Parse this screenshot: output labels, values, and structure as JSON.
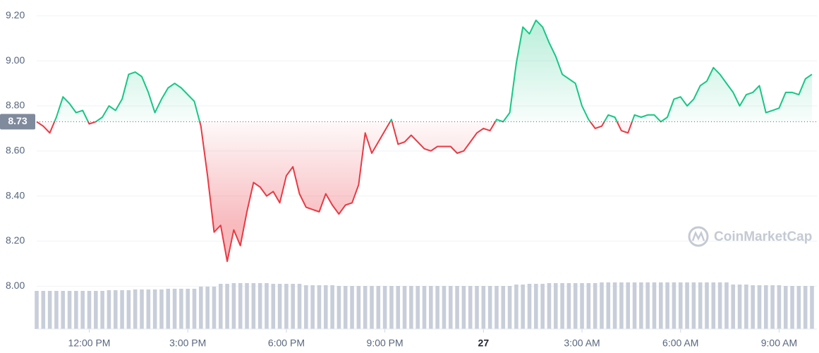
{
  "chart_data": {
    "type": "line",
    "x": [
      10.4,
      10.6,
      10.8,
      11.0,
      11.2,
      11.4,
      11.6,
      11.8,
      12.0,
      12.2,
      12.4,
      12.6,
      12.8,
      13.0,
      13.2,
      13.4,
      13.6,
      13.8,
      14.0,
      14.2,
      14.4,
      14.6,
      14.8,
      15.0,
      15.2,
      15.4,
      15.6,
      15.8,
      16.0,
      16.2,
      16.4,
      16.6,
      16.8,
      17.0,
      17.2,
      17.4,
      17.6,
      17.8,
      18.0,
      18.2,
      18.4,
      18.6,
      18.8,
      19.0,
      19.2,
      19.4,
      19.6,
      19.8,
      20.0,
      20.2,
      20.4,
      20.6,
      20.8,
      21.0,
      21.2,
      21.4,
      21.6,
      21.8,
      22.0,
      22.2,
      22.4,
      22.6,
      22.8,
      23.0,
      23.2,
      23.4,
      23.6,
      23.8,
      24.0,
      24.2,
      24.4,
      24.6,
      24.8,
      25.0,
      25.2,
      25.4,
      25.6,
      25.8,
      26.0,
      26.2,
      26.4,
      26.6,
      26.8,
      27.0,
      27.2,
      27.4,
      27.6,
      27.8,
      28.0,
      28.2,
      28.4,
      28.6,
      28.8,
      29.0,
      29.2,
      29.4,
      29.6,
      29.8,
      30.0,
      30.2,
      30.4,
      30.6,
      30.8,
      31.0,
      31.2,
      31.4,
      31.6,
      31.8,
      32.0,
      32.2,
      32.4,
      32.6,
      32.8,
      33.0,
      33.2,
      33.4,
      33.6,
      33.8,
      34.0
    ],
    "values": [
      8.73,
      8.71,
      8.68,
      8.75,
      8.84,
      8.81,
      8.77,
      8.78,
      8.72,
      8.73,
      8.75,
      8.8,
      8.78,
      8.83,
      8.94,
      8.95,
      8.93,
      8.86,
      8.77,
      8.83,
      8.88,
      8.9,
      8.88,
      8.85,
      8.82,
      8.71,
      8.49,
      8.24,
      8.27,
      8.11,
      8.25,
      8.18,
      8.33,
      8.46,
      8.44,
      8.4,
      8.42,
      8.37,
      8.49,
      8.53,
      8.41,
      8.35,
      8.34,
      8.33,
      8.41,
      8.36,
      8.32,
      8.36,
      8.37,
      8.45,
      8.68,
      8.59,
      8.64,
      8.69,
      8.74,
      8.63,
      8.64,
      8.67,
      8.64,
      8.61,
      8.6,
      8.62,
      8.62,
      8.62,
      8.59,
      8.6,
      8.64,
      8.68,
      8.7,
      8.69,
      8.74,
      8.73,
      8.77,
      8.99,
      9.15,
      9.12,
      9.18,
      9.15,
      9.08,
      9.02,
      8.94,
      8.92,
      8.9,
      8.8,
      8.74,
      8.7,
      8.71,
      8.76,
      8.75,
      8.69,
      8.68,
      8.76,
      8.75,
      8.76,
      8.76,
      8.73,
      8.75,
      8.83,
      8.84,
      8.8,
      8.83,
      8.89,
      8.91,
      8.97,
      8.94,
      8.9,
      8.86,
      8.8,
      8.85,
      8.86,
      8.89,
      8.77,
      8.78,
      8.79,
      8.86,
      8.86,
      8.85,
      8.92,
      8.94
    ],
    "volume": [
      54,
      54,
      54,
      54,
      54,
      54,
      54,
      54,
      54,
      54,
      54,
      55,
      55,
      55,
      55,
      56,
      56,
      56,
      56,
      56,
      57,
      57,
      57,
      57,
      57,
      60,
      60,
      60,
      64,
      64,
      65,
      65,
      65,
      65,
      65,
      65,
      64,
      64,
      64,
      64,
      64,
      62,
      62,
      62,
      62,
      62,
      61,
      61,
      61,
      61,
      61,
      61,
      61,
      61,
      61,
      61,
      61,
      61,
      61,
      61,
      61,
      61,
      61,
      61,
      61,
      61,
      61,
      61,
      61,
      61,
      61,
      61,
      61,
      63,
      63,
      64,
      64,
      64,
      65,
      65,
      65,
      65,
      65,
      65,
      65,
      65,
      66,
      66,
      66,
      66,
      66,
      66,
      66,
      66,
      66,
      66,
      66,
      66,
      66,
      66,
      66,
      66,
      66,
      66,
      66,
      66,
      63,
      63,
      63,
      62,
      62,
      62,
      62,
      62,
      61,
      61,
      61,
      61,
      61
    ],
    "volume_ylim": [
      0,
      70
    ],
    "baseline": 8.73,
    "up_color": "#16c784",
    "down_color": "#ea3943",
    "volume_color": "#c8ced9",
    "xlim": [
      10.4,
      34.15
    ],
    "ylim": [
      7.81,
      9.27
    ],
    "xticks": [
      {
        "value": 12,
        "label": "12:00 PM"
      },
      {
        "value": 15,
        "label": "3:00 PM"
      },
      {
        "value": 18,
        "label": "6:00 PM"
      },
      {
        "value": 21,
        "label": "9:00 PM"
      },
      {
        "value": 24,
        "label": "27"
      },
      {
        "value": 27,
        "label": "3:00 AM"
      },
      {
        "value": 30,
        "label": "6:00 AM"
      },
      {
        "value": 33,
        "label": "9:00 AM"
      }
    ],
    "yticks": [
      {
        "value": 8.0,
        "label": "8.00"
      },
      {
        "value": 8.2,
        "label": "8.20"
      },
      {
        "value": 8.4,
        "label": "8.40"
      },
      {
        "value": 8.6,
        "label": "8.60"
      },
      {
        "value": 8.8,
        "label": "8.80"
      },
      {
        "value": 9.0,
        "label": "9.00"
      },
      {
        "value": 9.2,
        "label": "9.20"
      }
    ],
    "grid": true,
    "watermark": "CoinMarketCap"
  }
}
